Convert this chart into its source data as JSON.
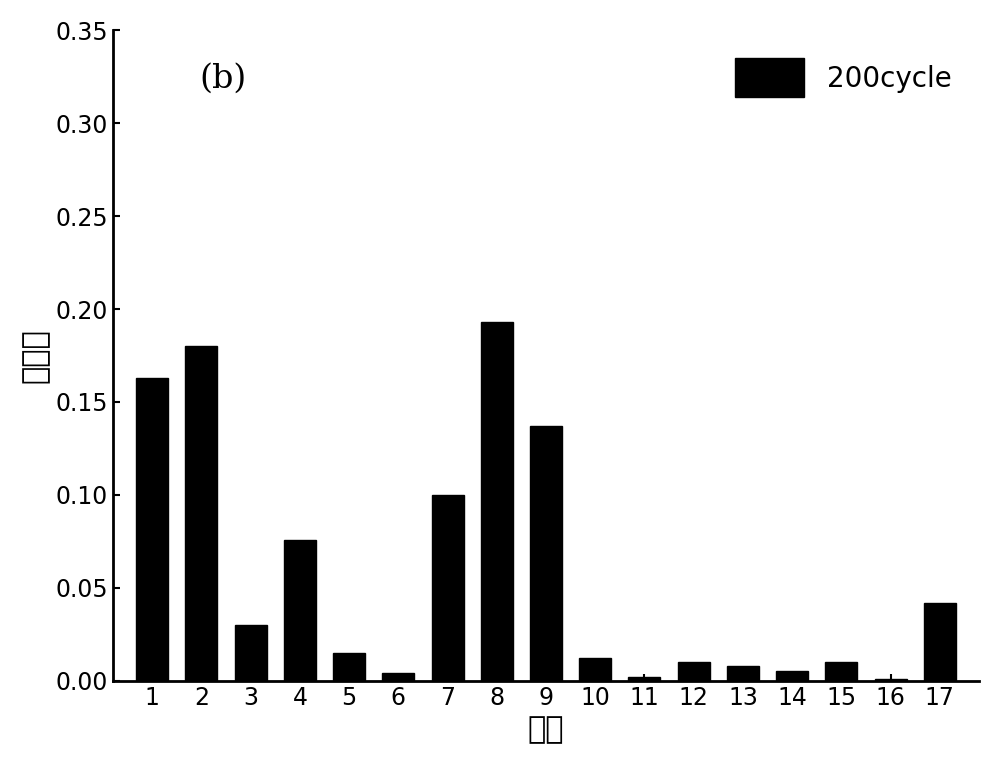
{
  "categories": [
    1,
    2,
    3,
    4,
    5,
    6,
    7,
    8,
    9,
    10,
    11,
    12,
    13,
    14,
    15,
    16,
    17
  ],
  "values": [
    0.163,
    0.18,
    0.03,
    0.076,
    0.015,
    0.004,
    0.1,
    0.193,
    0.137,
    0.012,
    0.002,
    0.01,
    0.008,
    0.005,
    0.01,
    0.001,
    0.042
  ],
  "bar_color": "#000000",
  "ylabel": "重要性",
  "xlabel": "特征",
  "legend_label": "200cycle",
  "ylim": [
    0,
    0.35
  ],
  "yticks": [
    0.0,
    0.05,
    0.1,
    0.15,
    0.2,
    0.25,
    0.3,
    0.35
  ],
  "annotation": "(b)",
  "background_color": "#ffffff",
  "bar_width": 0.65,
  "legend_fontsize": 20,
  "axis_fontsize": 22,
  "tick_fontsize": 17,
  "annotation_fontsize": 24
}
